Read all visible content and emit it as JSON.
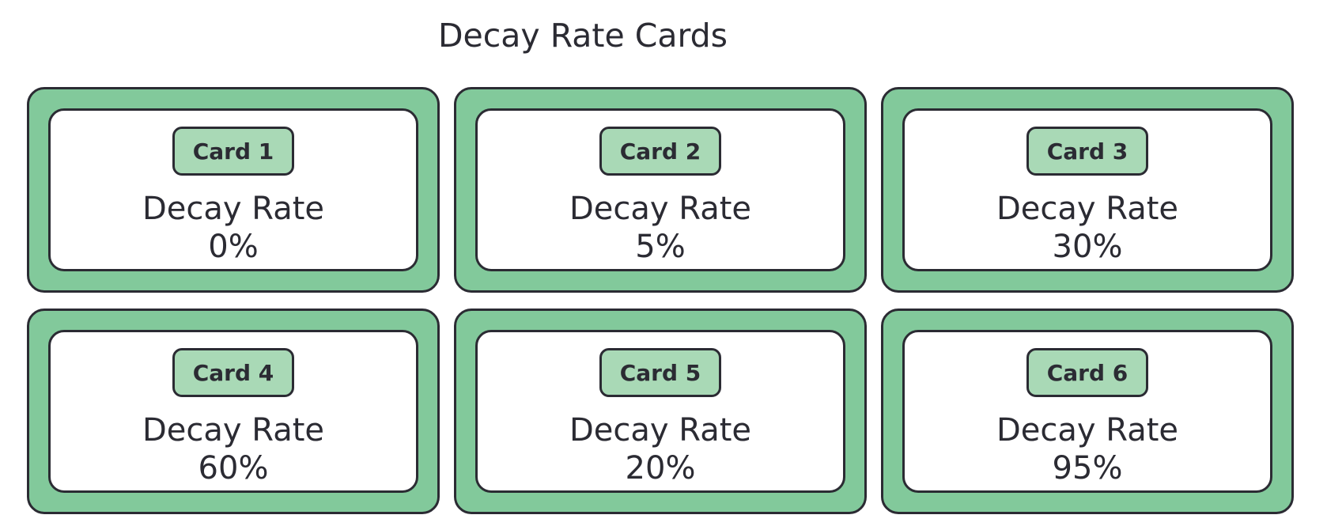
{
  "title": "Decay Rate Cards",
  "cards": [
    {
      "badge": "Card 1",
      "label": "Decay Rate",
      "value": "0%"
    },
    {
      "badge": "Card 2",
      "label": "Decay Rate",
      "value": "5%"
    },
    {
      "badge": "Card 3",
      "label": "Decay Rate",
      "value": "30%"
    },
    {
      "badge": "Card 4",
      "label": "Decay Rate",
      "value": "60%"
    },
    {
      "badge": "Card 5",
      "label": "Decay Rate",
      "value": "20%"
    },
    {
      "badge": "Card 6",
      "label": "Decay Rate",
      "value": "95%"
    }
  ],
  "colors": {
    "card_frame": "#82c99b",
    "badge_fill": "#a9d9b6",
    "outline": "#2b2b33",
    "inner_fill": "#ffffff"
  }
}
